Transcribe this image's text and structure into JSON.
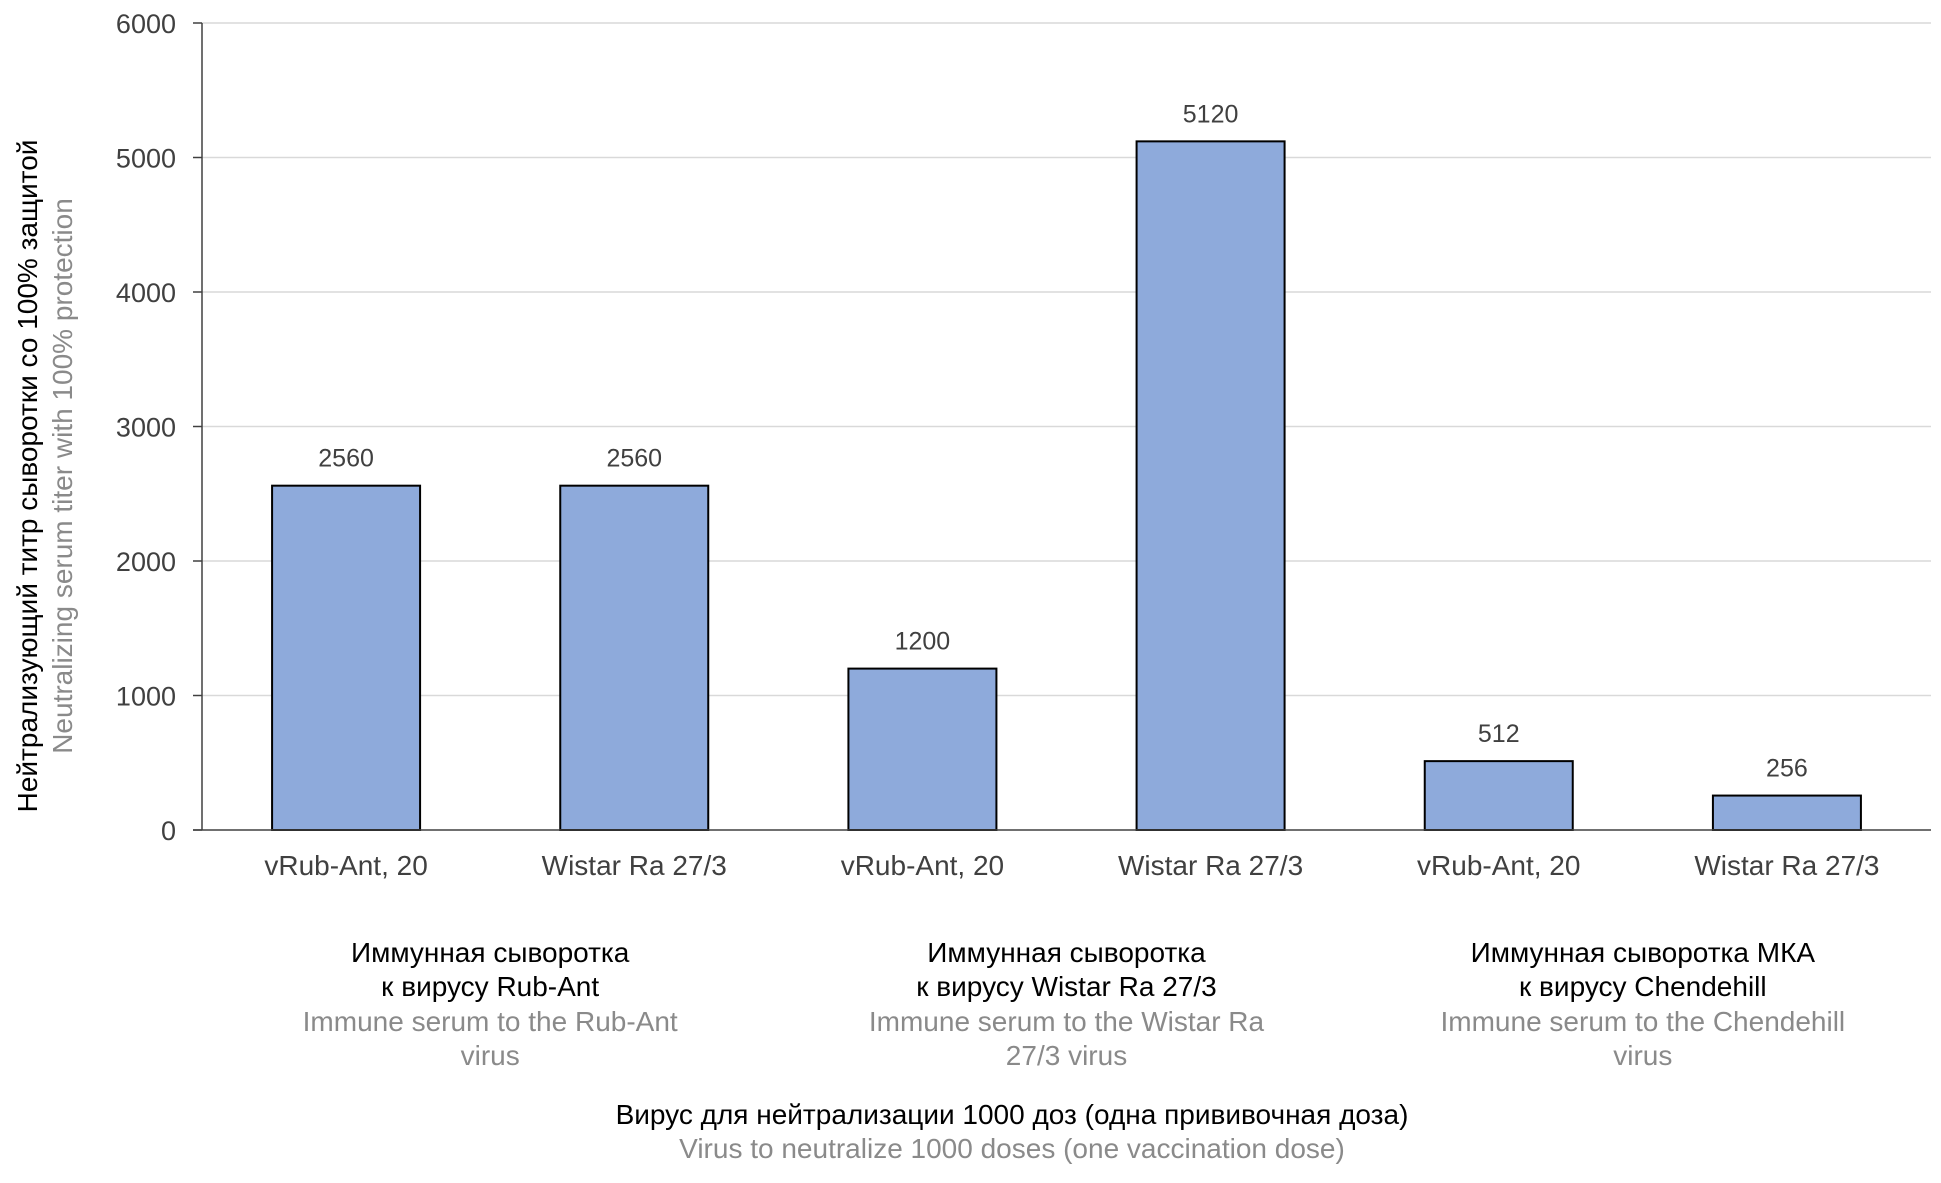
{
  "chart_data": {
    "type": "bar",
    "categories": [
      "vRub-Ant, 20",
      "Wistar Ra 27/3",
      "vRub-Ant, 20",
      "Wistar Ra 27/3",
      "vRub-Ant, 20",
      "Wistar Ra 27/3"
    ],
    "values": [
      2560,
      2560,
      1200,
      5120,
      512,
      256
    ],
    "data_labels": [
      "2560",
      "2560",
      "1200",
      "5120",
      "512",
      "256"
    ],
    "groups": [
      {
        "ru_line1": "Иммунная сыворотка",
        "ru_line2": "к вирусу Rub-Ant",
        "en_line1": "Immune serum to the Rub-Ant",
        "en_line2": "virus"
      },
      {
        "ru_line1": "Иммунная сыворотка",
        "ru_line2": "к вирусу Wistar Ra 27/3",
        "en_line1": "Immune serum to the Wistar Ra",
        "en_line2": "27/3 virus"
      },
      {
        "ru_line1": "Иммунная сыворотка МКА",
        "ru_line2": "к вирусу Chendehill",
        "en_line1": "Immune serum to the Chendehill",
        "en_line2": "virus"
      }
    ],
    "xlabel_ru": "Вирус для нейтрализации 1000 доз (одна прививочная доза)",
    "xlabel_en": "Virus to neutralize 1000 doses (one vaccination dose)",
    "ylabel_ru": "Нейтрализующий титр сыворотки со 100% защитой",
    "ylabel_en": "Neutralizing serum titer with 100% protection",
    "ylim": [
      0,
      6000
    ],
    "yticks": [
      "0",
      "1000",
      "2000",
      "3000",
      "4000",
      "5000",
      "6000"
    ],
    "grid": true,
    "colors": {
      "bar": "#8eaadb",
      "bar_stroke": "#000000",
      "grid": "#d9d9d9",
      "axis": "#404040"
    }
  }
}
